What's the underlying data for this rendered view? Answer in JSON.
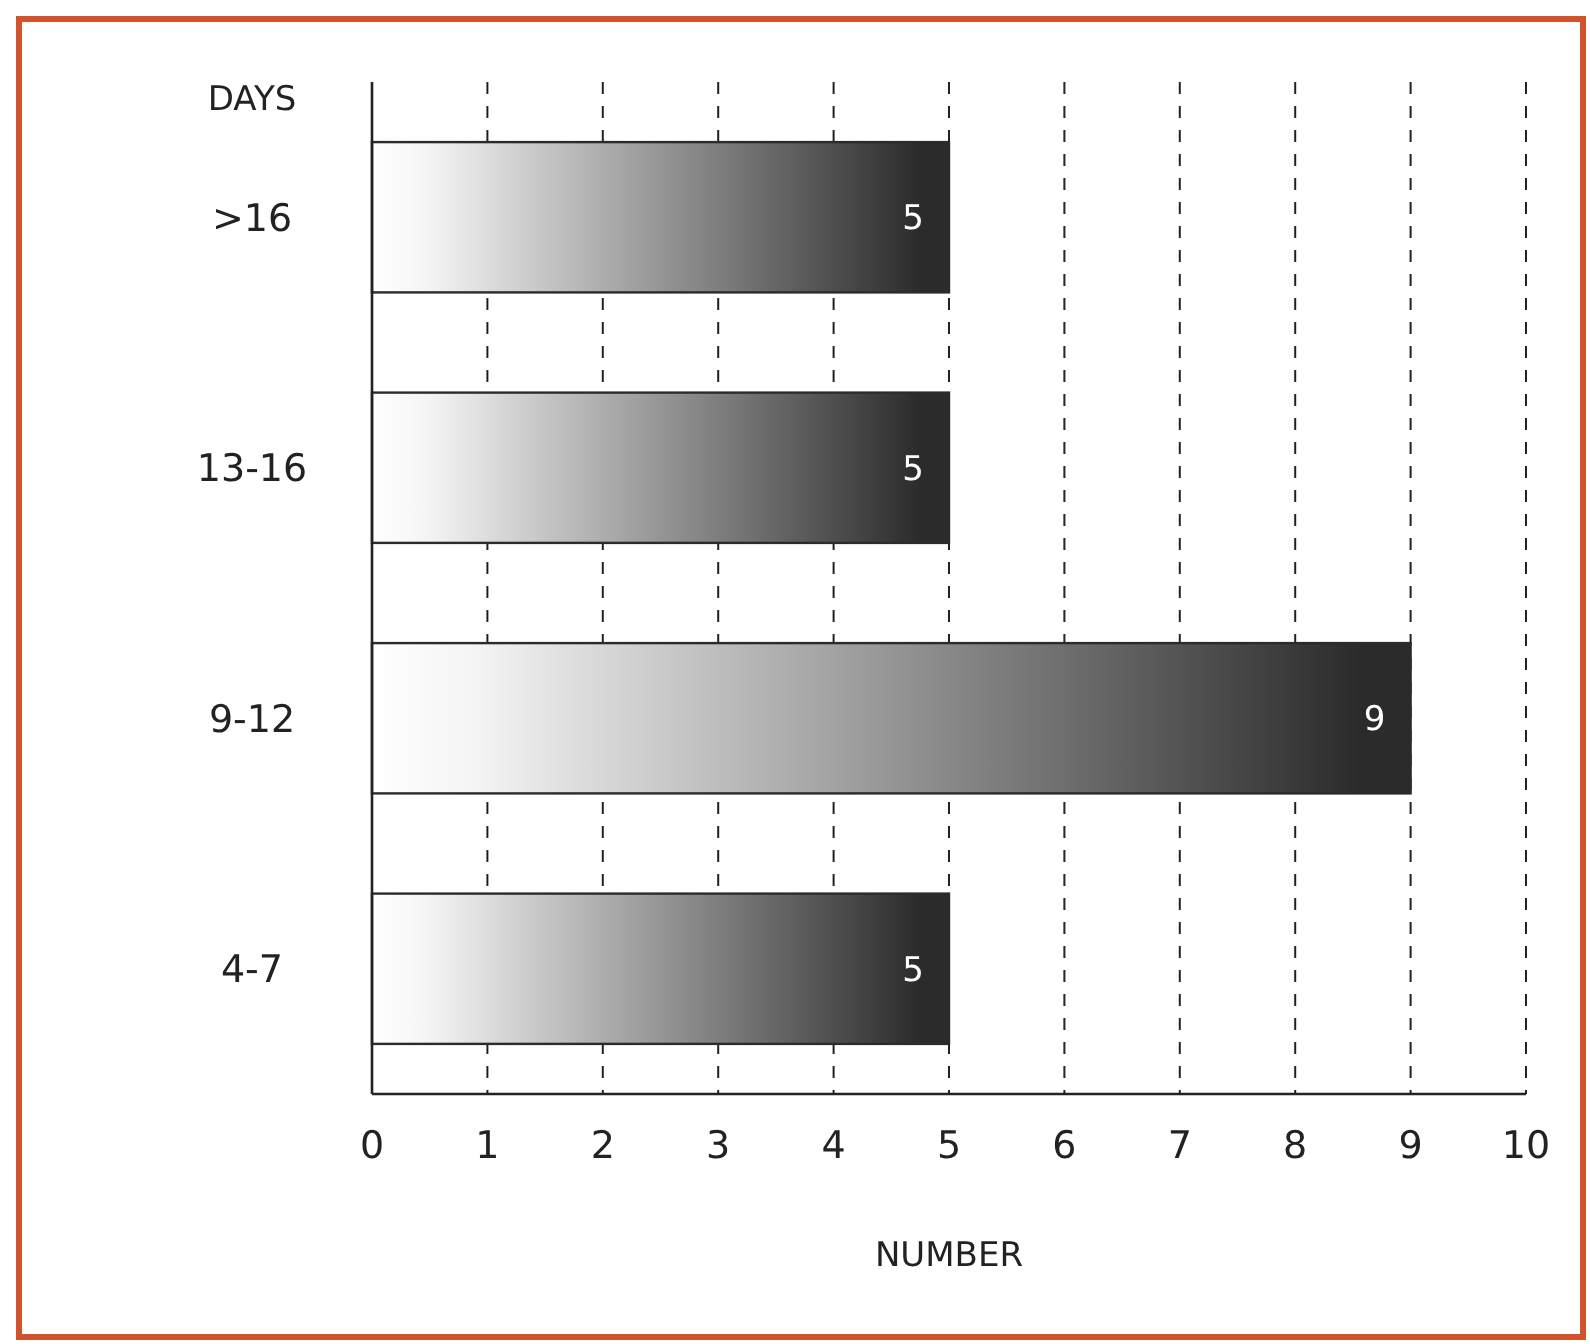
{
  "chart_data": {
    "type": "bar",
    "orientation": "horizontal",
    "categories": [
      ">16",
      "13-16",
      "9-12",
      "4-7"
    ],
    "values": [
      5,
      5,
      9,
      5
    ],
    "color": "#2b2b2b",
    "xlim": [
      0,
      10
    ],
    "xticks": [
      0,
      1,
      2,
      3,
      4,
      5,
      6,
      7,
      8,
      9,
      10
    ],
    "xlabel": "NUMBER",
    "ylabel": "DAYS",
    "grid": "x",
    "data_labels": true
  }
}
